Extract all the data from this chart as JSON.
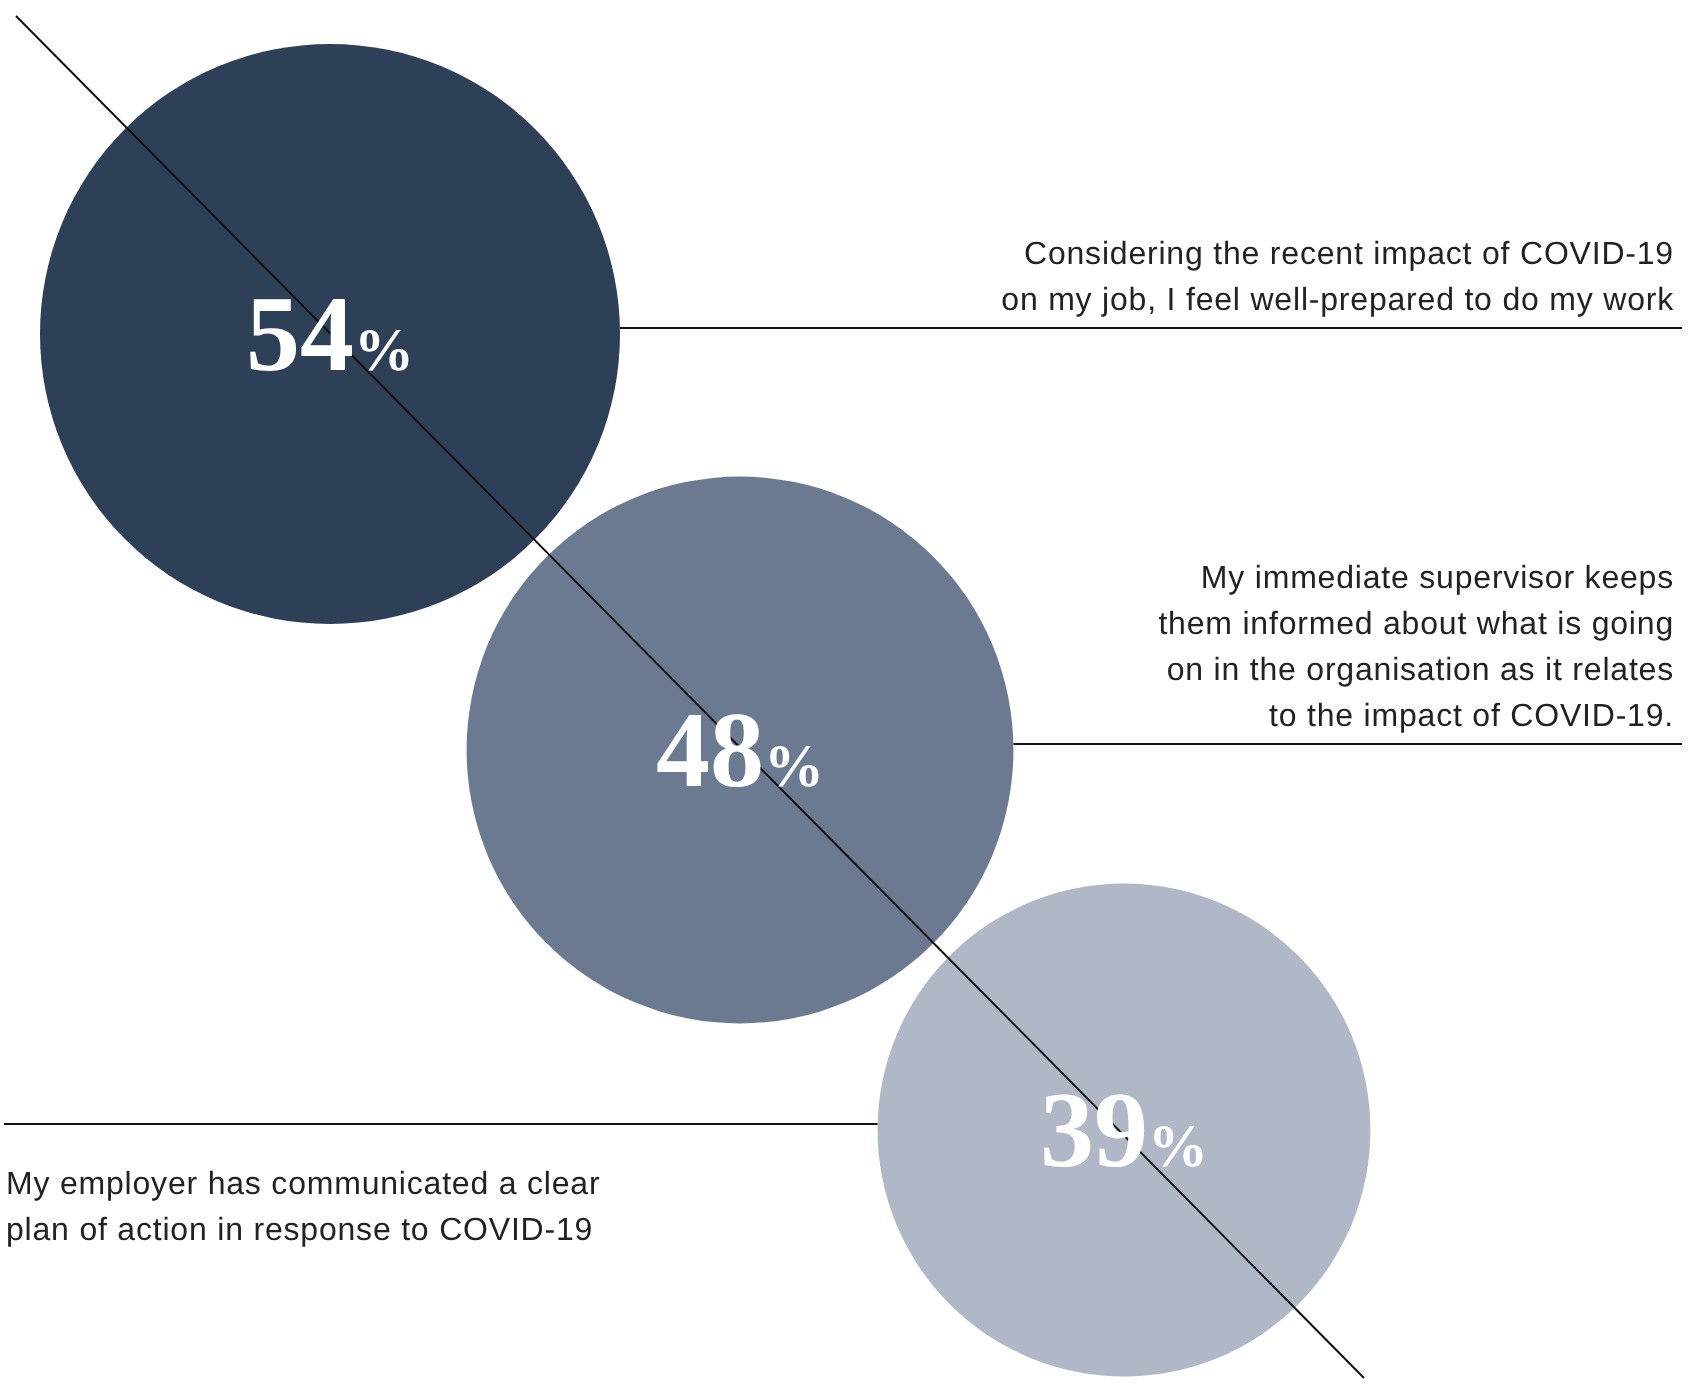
{
  "chart_data": {
    "type": "other",
    "categories": [
      "Considering the recent impact of COVID-19\non my job, I feel well-prepared to do my work",
      "My immediate supervisor keeps\nthem informed about what is going\non in the organisation as it relates\nto the impact of COVID-19.",
      "My employer has communicated a clear\nplan of action in response to COVID-19"
    ],
    "values": [
      54,
      48,
      39
    ],
    "value_labels": [
      "54%",
      "48%",
      "39%"
    ],
    "colors": [
      "#2e3f58",
      "#6b7a91",
      "#b0b7c7"
    ]
  }
}
